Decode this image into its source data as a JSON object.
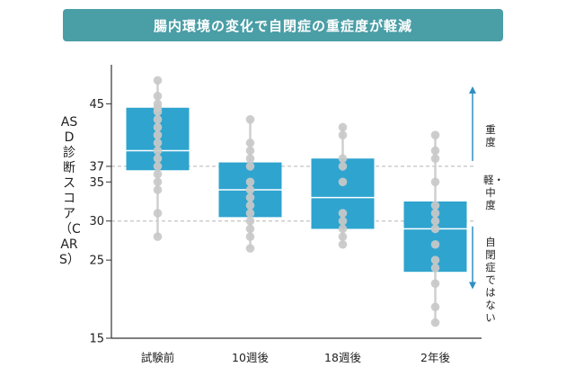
{
  "title": "腸内環境の変化で自閉症の重症度が軽減",
  "chart_data": {
    "type": "box",
    "title": "腸内環境の変化で自閉症の重症度が軽減",
    "ylabel": "ASD診断スコア（CARS）",
    "xlabel": "",
    "ylim": [
      15,
      50
    ],
    "yticks": [
      15,
      25,
      30,
      35,
      37,
      45
    ],
    "reference_lines": [
      30,
      37
    ],
    "categories": [
      "試験前",
      "10週後",
      "18週後",
      "2年後"
    ],
    "boxes": [
      {
        "name": "試験前",
        "q1": 36.5,
        "median": 39,
        "q3": 44.5,
        "whisker_low": 28,
        "whisker_high": 48,
        "points": [
          48,
          46,
          45,
          44.5,
          44,
          43,
          42,
          41,
          40,
          39,
          38,
          37,
          36,
          35,
          34,
          31,
          28
        ]
      },
      {
        "name": "10週後",
        "q1": 30.5,
        "median": 34,
        "q3": 37.5,
        "whisker_low": 26.5,
        "whisker_high": 43,
        "points": [
          43,
          40,
          39,
          38,
          37,
          35,
          34,
          33,
          32,
          31,
          30,
          29,
          28,
          26.5
        ]
      },
      {
        "name": "18週後",
        "q1": 29,
        "median": 33,
        "q3": 38,
        "whisker_low": 27,
        "whisker_high": 42,
        "points": [
          42,
          41,
          38,
          37,
          35,
          31,
          30,
          29,
          28,
          27
        ]
      },
      {
        "name": "2年後",
        "q1": 23.5,
        "median": 29,
        "q3": 32.5,
        "whisker_low": 17,
        "whisker_high": 41,
        "points": [
          41,
          39,
          38,
          35,
          32,
          31,
          30,
          29,
          27,
          25,
          24,
          22,
          19,
          17
        ]
      }
    ],
    "severity_labels": {
      "severe": "重度",
      "mild_moderate": "軽・中度",
      "non_autistic": "自閉症ではない"
    }
  },
  "colors": {
    "box": "#2fa4cf",
    "point": "#c9c9c9",
    "median": "#ffffff",
    "banner": "#4a9ea6",
    "arrow": "#2f8fc4",
    "refline": "#b5b5b5"
  }
}
